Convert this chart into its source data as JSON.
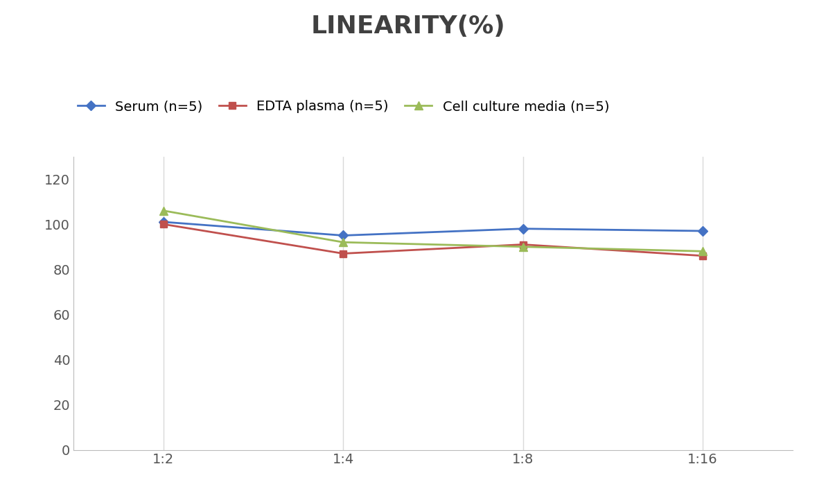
{
  "title": "LINEARITY(%)",
  "x_labels": [
    "1:2",
    "1:4",
    "1:8",
    "1:16"
  ],
  "x_positions": [
    0,
    1,
    2,
    3
  ],
  "serum": [
    101,
    95,
    98,
    97
  ],
  "edta_plasma": [
    100,
    87,
    91,
    86
  ],
  "cell_culture": [
    106,
    92,
    90,
    88
  ],
  "serum_label": "Serum (n=5)",
  "edta_label": "EDTA plasma (n=5)",
  "cell_label": "Cell culture media (n=5)",
  "serum_color": "#4472C4",
  "edta_color": "#C0504D",
  "cell_color": "#9BBB59",
  "ylim": [
    0,
    130
  ],
  "yticks": [
    0,
    20,
    40,
    60,
    80,
    100,
    120
  ],
  "background_color": "#FFFFFF",
  "title_fontsize": 26,
  "legend_fontsize": 14,
  "tick_fontsize": 14,
  "grid_color": "#D9D9D9"
}
